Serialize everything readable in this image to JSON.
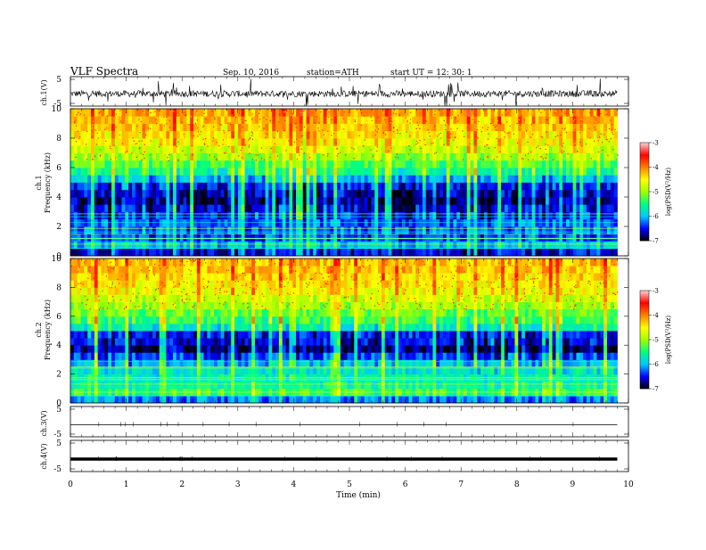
{
  "header": {
    "title": "VLF  Spectra",
    "date": "Sep. 10, 2016",
    "station": "station=ATH",
    "start": "start  UT  =   12: 30: 1"
  },
  "chart_data": [
    {
      "type": "line",
      "panel": "ch1-waveform",
      "ylabel": "ch.1(V)",
      "ylim": [
        -5,
        5
      ],
      "yticks": [
        "5",
        "-5"
      ],
      "x": [
        0,
        9.8
      ],
      "baseline": -0.8,
      "xlim": [
        0,
        10
      ]
    },
    {
      "type": "heatmap",
      "panel": "ch1-spectrogram",
      "ylabel": "ch.1\nFrequency  (kHz)",
      "ylim": [
        0,
        10
      ],
      "yticks": [
        "0",
        "2",
        "4",
        "6",
        "8",
        "10"
      ],
      "xlim": [
        0,
        9.8
      ],
      "freq_kHz": [
        0.25,
        0.75,
        1.25,
        1.75,
        2.25,
        2.75,
        3.25,
        3.75,
        4.25,
        4.75,
        5.25,
        5.75,
        6.25,
        6.75,
        7.25,
        7.75,
        8.25,
        8.75,
        9.25,
        9.75
      ],
      "logPSD": [
        -6.6,
        -6.0,
        -6.4,
        -6.3,
        -6.3,
        -6.5,
        -6.6,
        -6.8,
        -6.7,
        -6.5,
        -6.0,
        -5.6,
        -5.3,
        -5.0,
        -4.8,
        -4.6,
        -4.5,
        -4.4,
        -4.3,
        -4.2
      ],
      "colorbar": {
        "label": "log(PSD(V²/Hz)",
        "range": [
          -7,
          -3
        ],
        "ticks": [
          "-3",
          "-4",
          "-5",
          "-6",
          "-7"
        ]
      }
    },
    {
      "type": "heatmap",
      "panel": "ch2-spectrogram",
      "ylabel": "ch.2\nFrequency  (kHz)",
      "ylim": [
        0,
        10
      ],
      "yticks": [
        "0",
        "2",
        "4",
        "6",
        "8",
        "10"
      ],
      "xlim": [
        0,
        9.8
      ],
      "freq_kHz": [
        0.25,
        0.75,
        1.25,
        1.75,
        2.25,
        2.75,
        3.25,
        3.75,
        4.25,
        4.75,
        5.25,
        5.75,
        6.25,
        6.75,
        7.25,
        7.75,
        8.25,
        8.75,
        9.25,
        9.75
      ],
      "logPSD": [
        -6.2,
        -5.4,
        -5.6,
        -5.7,
        -5.8,
        -6.0,
        -6.4,
        -6.8,
        -6.6,
        -6.5,
        -5.7,
        -5.4,
        -5.2,
        -5.0,
        -4.8,
        -4.6,
        -4.5,
        -4.4,
        -4.3,
        -4.3
      ],
      "colorbar": {
        "label": "log(PSD(V²/Hz)",
        "range": [
          -7,
          -3
        ],
        "ticks": [
          "-3",
          "-4",
          "-5",
          "-6",
          "-7"
        ]
      }
    },
    {
      "type": "line",
      "panel": "ch3-waveform",
      "ylabel": "ch.3(V)",
      "ylim": [
        -5,
        5
      ],
      "yticks": [
        "5",
        "-5"
      ],
      "x": [
        0,
        9.8
      ],
      "y": [
        -1,
        -1
      ]
    },
    {
      "type": "line",
      "panel": "ch4-waveform",
      "ylabel": "ch.4(V)",
      "ylim": [
        -5,
        5
      ],
      "yticks": [
        "5",
        "-5"
      ],
      "x": [
        0,
        9.8
      ],
      "y": [
        -1,
        -1
      ]
    }
  ],
  "xaxis": {
    "label": "Time  (min)",
    "ticks": [
      "0",
      "1",
      "2",
      "3",
      "4",
      "5",
      "6",
      "7",
      "8",
      "9",
      "10"
    ],
    "range": [
      0,
      10
    ]
  },
  "colors": {
    "colormap": [
      "#000000",
      "#0000ff",
      "#00c8ff",
      "#00ff80",
      "#a0ff00",
      "#ffff00",
      "#ff8000",
      "#ff0000",
      "#ffd0d0"
    ]
  }
}
